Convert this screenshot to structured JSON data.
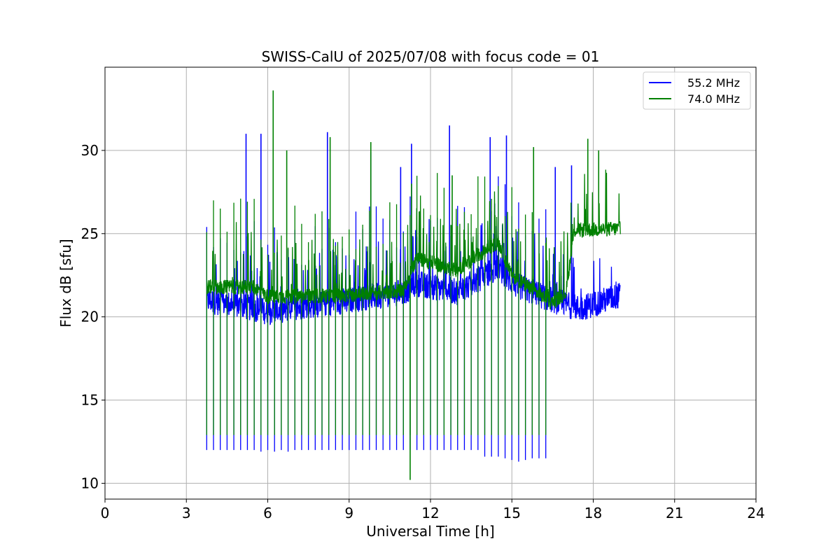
{
  "chart_data": {
    "type": "line",
    "title": "SWISS-CalU of 2025/07/08 with focus code = 01",
    "xlabel": "Universal Time [h]",
    "ylabel": "Flux dB [sfu]",
    "xlim": [
      0,
      24
    ],
    "ylim": [
      9.05,
      35.0
    ],
    "xticks": [
      0,
      3,
      6,
      9,
      12,
      15,
      18,
      21,
      24
    ],
    "xtick_labels": [
      "0",
      "3",
      "6",
      "9",
      "12",
      "15",
      "18",
      "21",
      "24"
    ],
    "yticks": [
      10,
      15,
      20,
      25,
      30
    ],
    "ytick_labels": [
      "10",
      "15",
      "20",
      "25",
      "30"
    ],
    "grid": true,
    "legend_position": "top-right",
    "time_range": [
      3.75,
      19.0
    ],
    "calibration_interval_h": 0.25,
    "series": [
      {
        "name": "55.2 MHz",
        "color": "#0000ff",
        "baseline": [
          [
            3.75,
            21.0
          ],
          [
            5.5,
            20.5
          ],
          [
            6.0,
            20.3
          ],
          [
            9.0,
            21.0
          ],
          [
            11.0,
            21.5
          ],
          [
            11.5,
            22.0
          ],
          [
            13.0,
            21.5
          ],
          [
            14.5,
            23.0
          ],
          [
            15.0,
            22.0
          ],
          [
            16.5,
            21.0
          ],
          [
            17.5,
            20.5
          ],
          [
            19.0,
            21.3
          ]
        ],
        "calibration_minima": [
          12.0,
          12.0,
          12.0,
          12.0,
          12.0,
          12.0,
          12.0,
          12.0,
          11.9,
          12.0,
          11.9,
          12.0,
          11.9,
          12.0,
          12.0,
          12.0,
          12.0,
          12.0,
          12.0,
          12.0,
          12.0,
          12.0,
          12.0,
          12.0,
          12.0,
          12.0,
          12.0,
          12.0,
          12.0,
          12.0,
          12.0,
          12.0,
          12.0,
          12.0,
          12.0,
          12.0,
          12.0,
          12.0,
          12.0,
          12.0,
          12.0,
          11.6,
          11.6,
          11.6,
          11.5,
          11.4,
          11.3,
          11.4,
          11.5,
          11.5,
          11.5
        ],
        "peaks": [
          [
            5.2,
            31.0
          ],
          [
            5.75,
            31.0
          ],
          [
            8.2,
            31.1
          ],
          [
            12.7,
            31.5
          ],
          [
            14.2,
            30.8
          ],
          [
            14.8,
            30.9
          ],
          [
            9.8,
            29.9
          ],
          [
            10.9,
            29.0
          ],
          [
            11.3,
            30.4
          ],
          [
            16.6,
            29.0
          ],
          [
            17.2,
            29.1
          ]
        ]
      },
      {
        "name": "74.0 MHz",
        "color": "#008000",
        "baseline": [
          [
            3.75,
            21.8
          ],
          [
            5.5,
            21.8
          ],
          [
            6.0,
            21.2
          ],
          [
            9.0,
            21.3
          ],
          [
            11.0,
            21.6
          ],
          [
            11.5,
            23.5
          ],
          [
            13.0,
            22.8
          ],
          [
            14.5,
            24.5
          ],
          [
            15.0,
            22.5
          ],
          [
            16.5,
            20.8
          ],
          [
            17.0,
            21.5
          ],
          [
            17.3,
            25.2
          ],
          [
            19.0,
            25.3
          ]
        ],
        "calibration_minima": [
          12.9,
          12.9,
          12.9,
          12.9,
          12.9,
          12.9,
          12.9,
          12.9,
          12.9,
          12.9,
          12.9,
          12.9,
          12.9,
          12.9,
          12.9,
          12.9,
          12.9,
          12.9,
          12.9,
          12.9,
          12.9,
          12.9,
          12.9,
          12.9,
          12.9,
          12.9,
          12.9,
          12.9,
          12.9,
          12.9,
          12.9,
          12.9,
          12.9,
          12.9,
          12.9,
          12.9,
          12.9,
          12.9,
          12.9,
          12.9,
          12.9,
          12.9,
          12.9,
          12.9,
          12.9,
          12.9,
          12.9,
          12.9,
          12.9,
          12.9,
          12.9
        ],
        "peaks": [
          [
            6.2,
            33.6
          ],
          [
            6.7,
            30.0
          ],
          [
            8.3,
            30.8
          ],
          [
            9.8,
            30.5
          ],
          [
            11.3,
            28.0
          ],
          [
            12.8,
            28.5
          ],
          [
            15.8,
            30.2
          ],
          [
            17.8,
            30.7
          ],
          [
            18.2,
            30.0
          ],
          [
            11.25,
            10.2
          ]
        ]
      }
    ]
  }
}
